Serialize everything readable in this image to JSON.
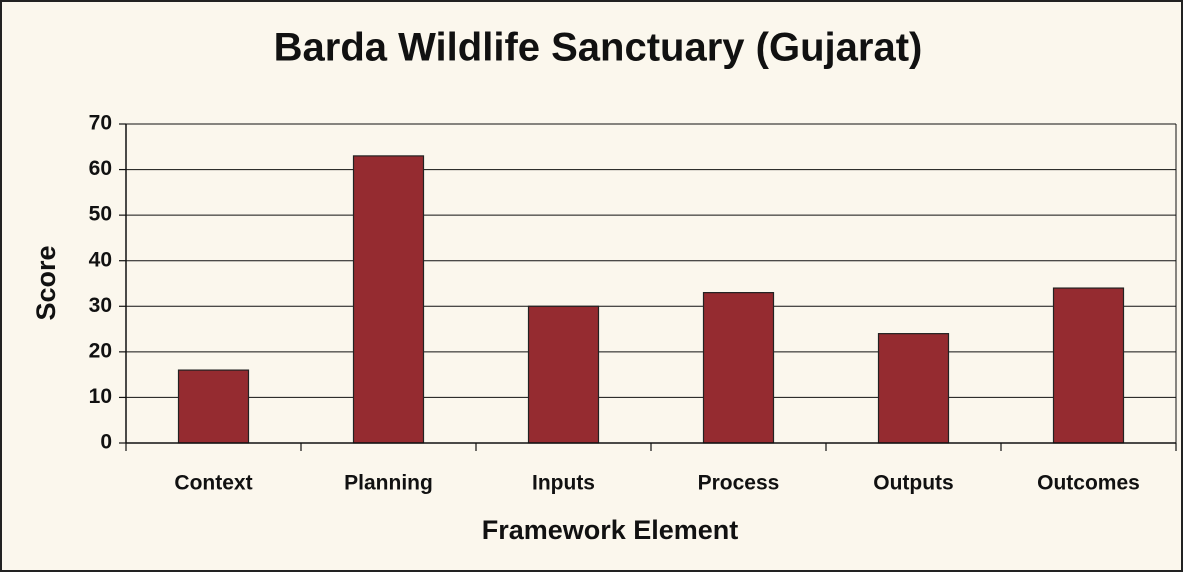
{
  "chart_data": {
    "type": "bar",
    "title": "Barda Wildlife Sanctuary (Gujarat)",
    "x_label": "Framework Element",
    "y_label": "Score",
    "categories": [
      "Context",
      "Planning",
      "Inputs",
      "Process",
      "Outputs",
      "Outcomes"
    ],
    "values": [
      16,
      63,
      30,
      33,
      24,
      34
    ],
    "color": "#952b30",
    "ylim": [
      0,
      70
    ],
    "yticks": [
      0,
      10,
      20,
      30,
      40,
      50,
      60,
      70
    ],
    "grid": true
  }
}
